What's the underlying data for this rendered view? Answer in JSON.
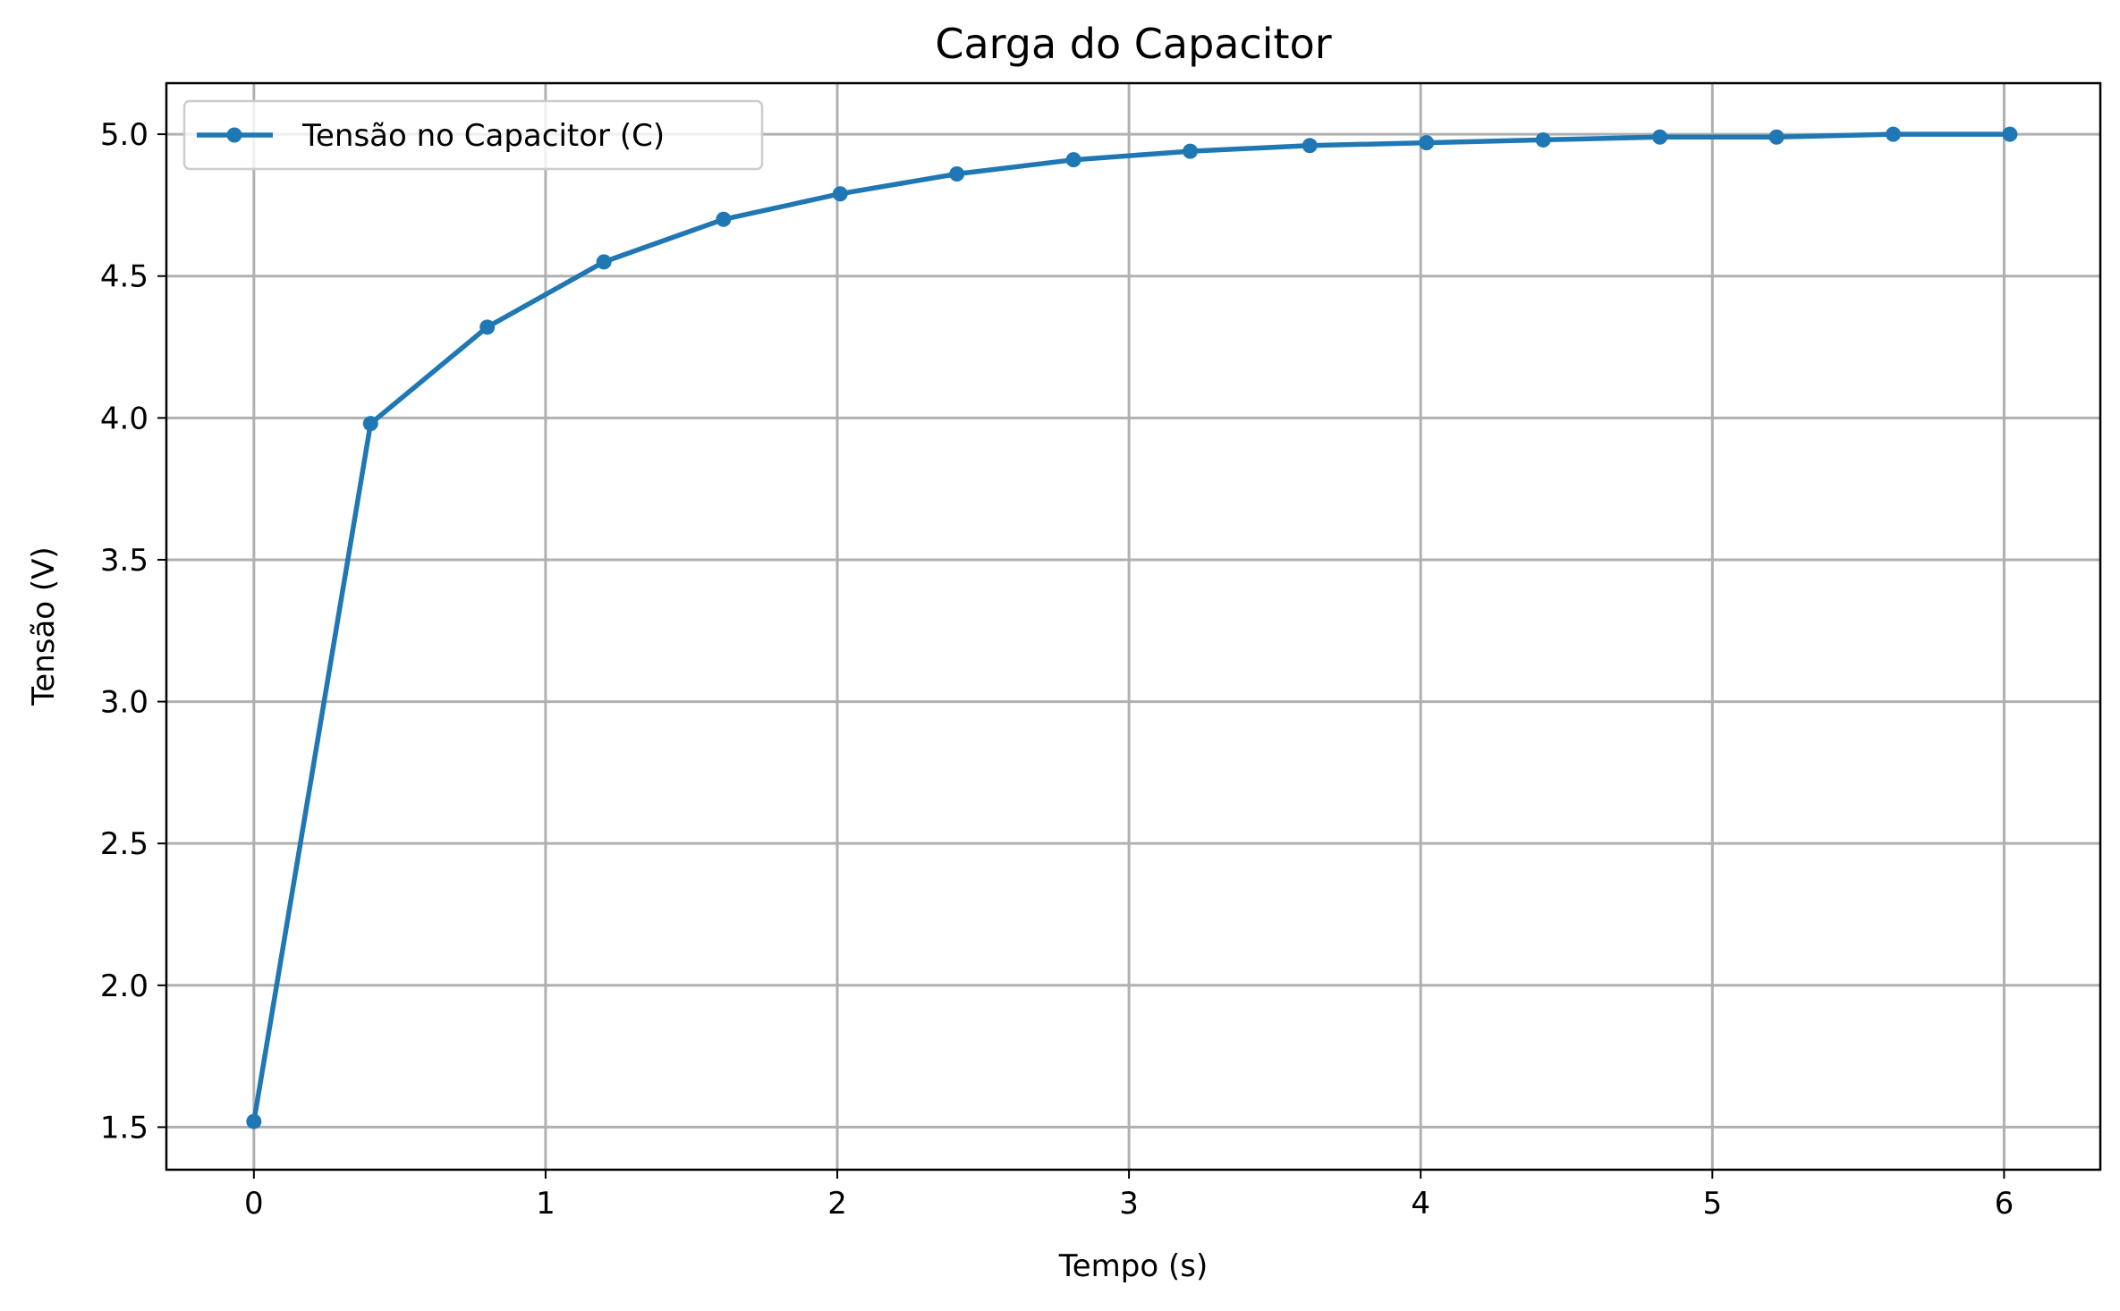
{
  "chart_data": {
    "type": "line",
    "title": "Carga do Capacitor",
    "xlabel": "Tempo (s)",
    "ylabel": "Tensão (V)",
    "xlim": [
      -0.3,
      6.33
    ],
    "ylim": [
      1.35,
      5.18
    ],
    "xticks": [
      0,
      1,
      2,
      3,
      4,
      5,
      6
    ],
    "xtick_labels": [
      "0",
      "1",
      "2",
      "3",
      "4",
      "5",
      "6"
    ],
    "yticks": [
      1.5,
      2.0,
      2.5,
      3.0,
      3.5,
      4.0,
      4.5,
      5.0
    ],
    "ytick_labels": [
      "1.5",
      "2.0",
      "2.5",
      "3.0",
      "3.5",
      "4.0",
      "4.5",
      "5.0"
    ],
    "grid": true,
    "legend_position": "top-left",
    "series": [
      {
        "name": "Tensão no Capacitor (C)",
        "color": "#1f77b4",
        "marker": "circle",
        "x": [
          0.0,
          0.4,
          0.8,
          1.2,
          1.61,
          2.01,
          2.41,
          2.81,
          3.21,
          3.62,
          4.02,
          4.42,
          4.82,
          5.22,
          5.62,
          6.02
        ],
        "y": [
          1.52,
          3.98,
          4.32,
          4.55,
          4.7,
          4.79,
          4.86,
          4.91,
          4.94,
          4.96,
          4.97,
          4.98,
          4.99,
          4.99,
          5.0,
          5.0
        ]
      }
    ]
  }
}
